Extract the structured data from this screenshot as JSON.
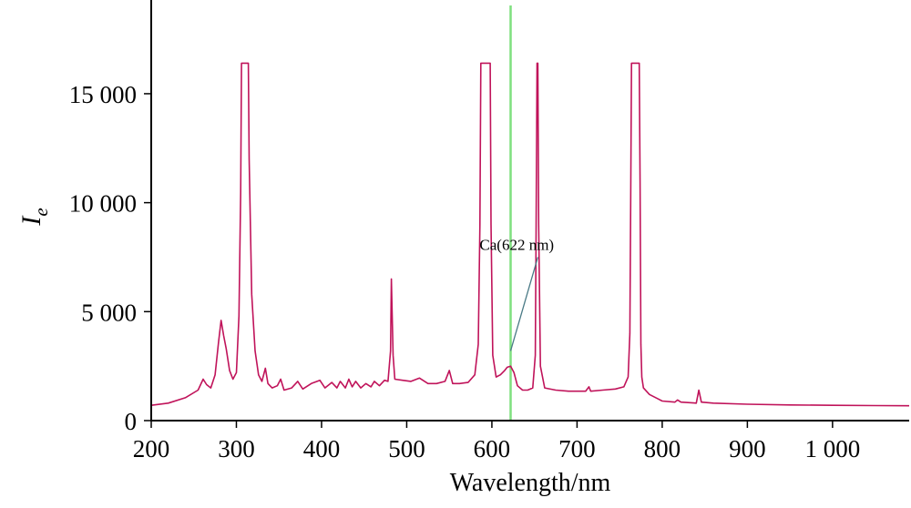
{
  "chart_data": {
    "type": "line",
    "xlabel": "Wavelength/nm",
    "ylabel_main": "I",
    "ylabel_sub": "e",
    "xlim": [
      200,
      1090
    ],
    "ylim": [
      0,
      19300
    ],
    "x_ticks": [
      {
        "value": 200,
        "label": "200"
      },
      {
        "value": 300,
        "label": "300"
      },
      {
        "value": 400,
        "label": "400"
      },
      {
        "value": 500,
        "label": "500"
      },
      {
        "value": 600,
        "label": "600"
      },
      {
        "value": 700,
        "label": "700"
      },
      {
        "value": 800,
        "label": "800"
      },
      {
        "value": 900,
        "label": "900"
      },
      {
        "value": 1000,
        "label": "1 000"
      }
    ],
    "y_ticks": [
      {
        "value": 0,
        "label": "0"
      },
      {
        "value": 5000,
        "label": "5 000"
      },
      {
        "value": 10000,
        "label": "10 000"
      },
      {
        "value": 15000,
        "label": "15 000"
      }
    ],
    "grid": false,
    "colors": {
      "spectrum": "#c0135a",
      "marker_line": "#7fe07f",
      "leader_line": "#4a7a86",
      "axis": "#000000"
    },
    "marker_x": 622,
    "annotation": {
      "text": "Ca(622 nm)",
      "point": [
        622,
        3200
      ],
      "label_at": [
        654,
        7500
      ]
    },
    "series": [
      {
        "points": [
          [
            200,
            700
          ],
          [
            220,
            800
          ],
          [
            240,
            1050
          ],
          [
            255,
            1400
          ],
          [
            261,
            1900
          ],
          [
            265,
            1650
          ],
          [
            270,
            1500
          ],
          [
            275,
            2100
          ],
          [
            279,
            3600
          ],
          [
            282,
            4600
          ],
          [
            285,
            3900
          ],
          [
            288,
            3300
          ],
          [
            292,
            2300
          ],
          [
            296,
            1900
          ],
          [
            300,
            2200
          ],
          [
            303,
            4800
          ],
          [
            305,
            10500
          ],
          [
            306,
            16400
          ],
          [
            314,
            16400
          ],
          [
            315,
            12000
          ],
          [
            318,
            5800
          ],
          [
            322,
            3200
          ],
          [
            326,
            2100
          ],
          [
            330,
            1800
          ],
          [
            334,
            2400
          ],
          [
            337,
            1700
          ],
          [
            342,
            1500
          ],
          [
            348,
            1600
          ],
          [
            352,
            1900
          ],
          [
            356,
            1400
          ],
          [
            365,
            1500
          ],
          [
            372,
            1800
          ],
          [
            378,
            1450
          ],
          [
            388,
            1700
          ],
          [
            398,
            1850
          ],
          [
            404,
            1500
          ],
          [
            412,
            1750
          ],
          [
            418,
            1500
          ],
          [
            422,
            1800
          ],
          [
            428,
            1500
          ],
          [
            432,
            1900
          ],
          [
            436,
            1550
          ],
          [
            440,
            1800
          ],
          [
            446,
            1500
          ],
          [
            452,
            1700
          ],
          [
            458,
            1550
          ],
          [
            462,
            1800
          ],
          [
            468,
            1600
          ],
          [
            474,
            1850
          ],
          [
            478,
            1800
          ],
          [
            481,
            3200
          ],
          [
            482,
            6500
          ],
          [
            484,
            3000
          ],
          [
            486,
            1900
          ],
          [
            495,
            1850
          ],
          [
            505,
            1800
          ],
          [
            515,
            1950
          ],
          [
            525,
            1700
          ],
          [
            535,
            1700
          ],
          [
            545,
            1800
          ],
          [
            550,
            2300
          ],
          [
            554,
            1700
          ],
          [
            562,
            1700
          ],
          [
            572,
            1750
          ],
          [
            580,
            2100
          ],
          [
            584,
            3500
          ],
          [
            586,
            9000
          ],
          [
            587,
            16400
          ],
          [
            598,
            16400
          ],
          [
            599,
            9000
          ],
          [
            601,
            3000
          ],
          [
            605,
            2000
          ],
          [
            610,
            2100
          ],
          [
            615,
            2300
          ],
          [
            618,
            2450
          ],
          [
            622,
            2500
          ],
          [
            626,
            2200
          ],
          [
            630,
            1600
          ],
          [
            636,
            1400
          ],
          [
            642,
            1400
          ],
          [
            648,
            1500
          ],
          [
            651,
            3000
          ],
          [
            652,
            9000
          ],
          [
            653,
            16400
          ],
          [
            654,
            16400
          ],
          [
            655,
            9000
          ],
          [
            657,
            2500
          ],
          [
            662,
            1500
          ],
          [
            675,
            1400
          ],
          [
            690,
            1350
          ],
          [
            710,
            1350
          ],
          [
            714,
            1550
          ],
          [
            716,
            1350
          ],
          [
            730,
            1400
          ],
          [
            745,
            1450
          ],
          [
            755,
            1550
          ],
          [
            760,
            2000
          ],
          [
            762,
            4000
          ],
          [
            763,
            10000
          ],
          [
            764,
            16400
          ],
          [
            773,
            16400
          ],
          [
            774,
            11000
          ],
          [
            775,
            3500
          ],
          [
            776,
            2000
          ],
          [
            778,
            1500
          ],
          [
            785,
            1200
          ],
          [
            795,
            1000
          ],
          [
            800,
            900
          ],
          [
            815,
            850
          ],
          [
            818,
            950
          ],
          [
            822,
            850
          ],
          [
            840,
            800
          ],
          [
            843,
            1400
          ],
          [
            846,
            850
          ],
          [
            860,
            800
          ],
          [
            900,
            750
          ],
          [
            950,
            720
          ],
          [
            1000,
            700
          ],
          [
            1050,
            690
          ],
          [
            1090,
            680
          ]
        ]
      }
    ]
  }
}
